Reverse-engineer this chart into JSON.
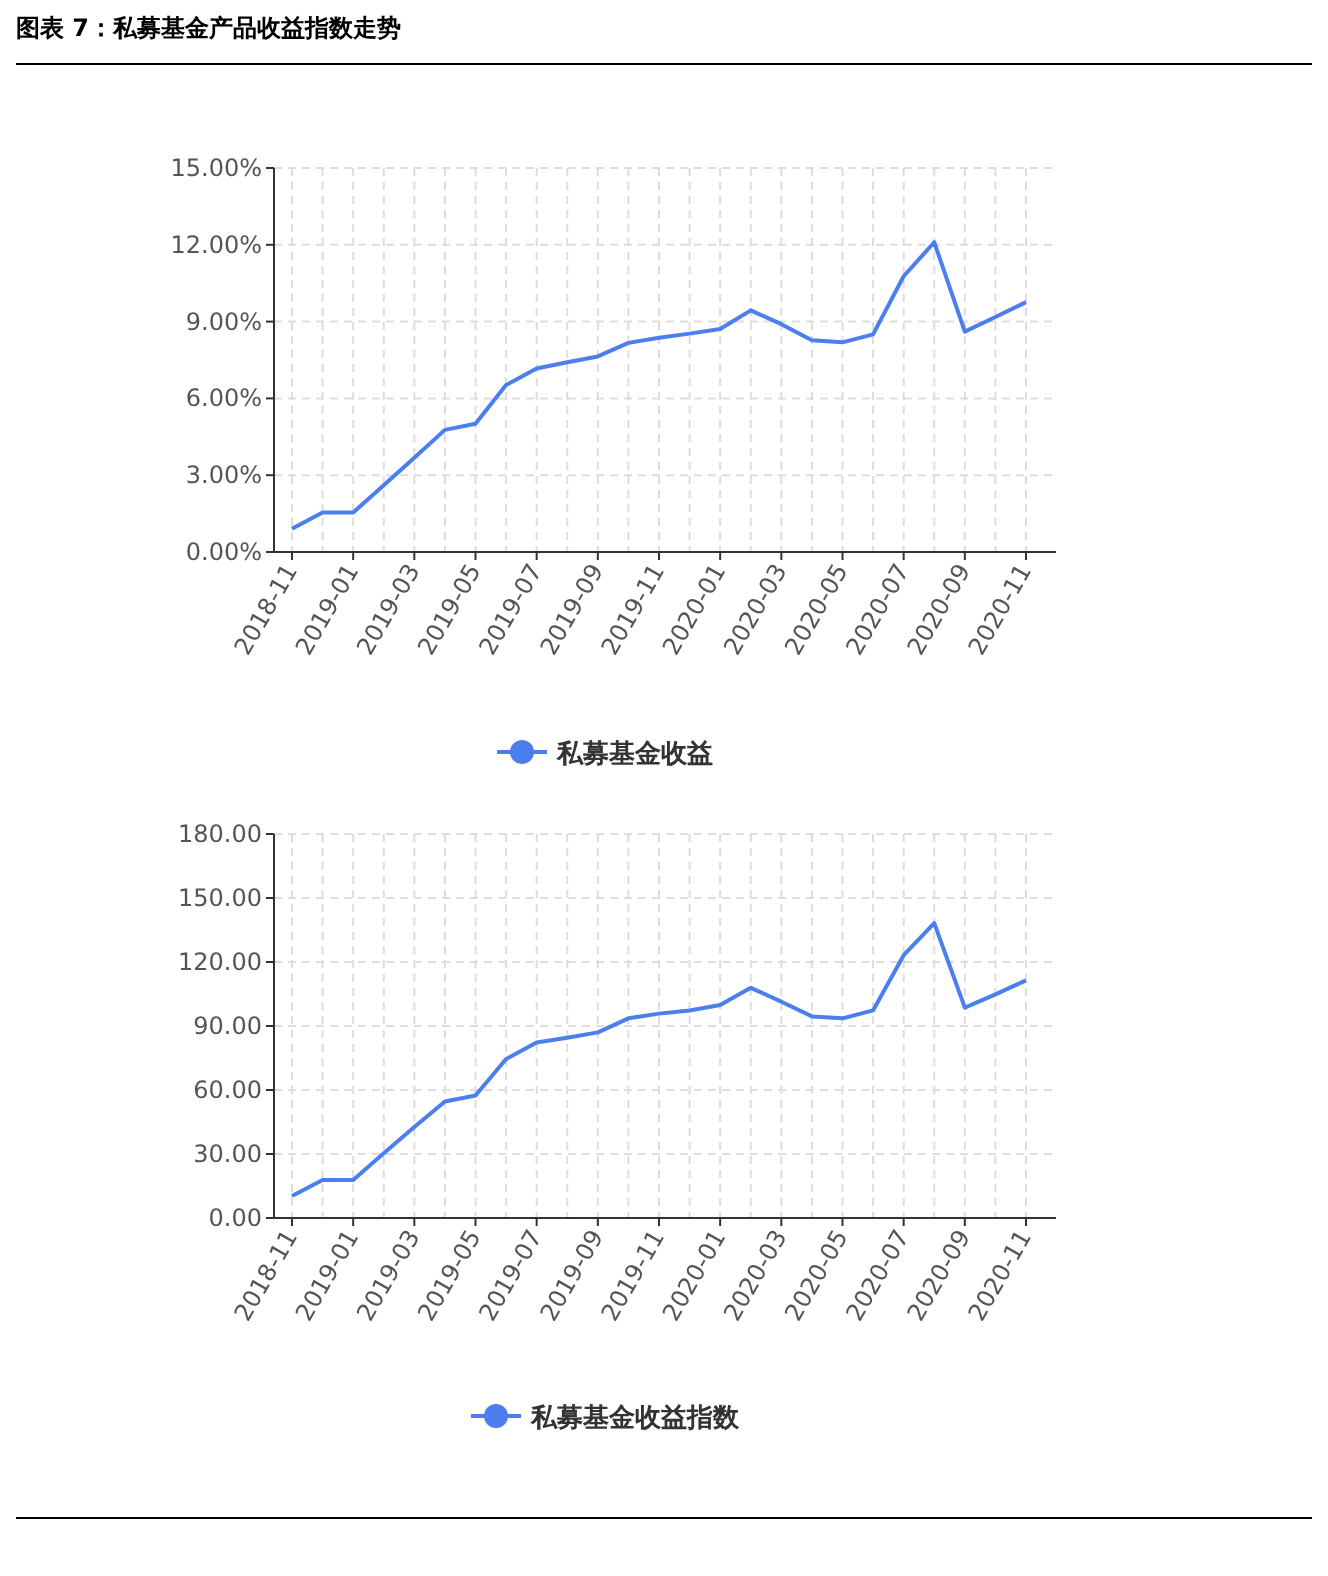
{
  "chart_data": [
    {
      "type": "line",
      "title": "图表 7：私募基金产品收益指数走势",
      "categories": [
        "2018-11",
        null,
        "2019-01",
        null,
        "2019-03",
        null,
        "2019-05",
        null,
        "2019-07",
        null,
        "2019-09",
        null,
        "2019-11",
        null,
        "2020-01",
        null,
        "2020-03",
        null,
        "2020-05",
        null,
        "2020-07",
        null,
        "2020-09",
        null,
        "2020-11"
      ],
      "series": [
        {
          "name": "私募基金收益",
          "color": "#4b7ff0",
          "values": [
            0.91,
            1.54,
            1.54,
            2.61,
            3.68,
            4.77,
            5.01,
            6.52,
            7.17,
            7.41,
            7.64,
            8.17,
            8.37,
            8.53,
            8.71,
            9.44,
            8.9,
            8.27,
            8.19,
            8.5,
            10.77,
            12.1,
            8.61,
            9.18,
            9.76
          ]
        }
      ],
      "ylim": [
        0,
        15
      ],
      "yticks": [
        {
          "value": 0,
          "label": "0.00%"
        },
        {
          "value": 3,
          "label": "3.00%"
        },
        {
          "value": 6,
          "label": "6.00%"
        },
        {
          "value": 9,
          "label": "9.00%"
        },
        {
          "value": 12,
          "label": "12.00%"
        },
        {
          "value": 15,
          "label": "15.00%"
        }
      ],
      "grid": true,
      "legend": "bottom"
    },
    {
      "type": "line",
      "categories": [
        "2018-11",
        null,
        "2019-01",
        null,
        "2019-03",
        null,
        "2019-05",
        null,
        "2019-07",
        null,
        "2019-09",
        null,
        "2019-11",
        null,
        "2020-01",
        null,
        "2020-03",
        null,
        "2020-05",
        null,
        "2020-07",
        null,
        "2020-09",
        null,
        "2020-11"
      ],
      "series": [
        {
          "name": "私募基金收益指数",
          "color": "#4b7ff0",
          "values": [
            10.3,
            17.8,
            17.8,
            30.3,
            42.7,
            54.6,
            57.4,
            74.5,
            82.3,
            84.5,
            87.0,
            93.6,
            95.8,
            97.3,
            99.8,
            107.9,
            101.4,
            94.5,
            93.6,
            97.3,
            123.2,
            138.2,
            98.6,
            104.8,
            111.4
          ]
        }
      ],
      "ylim": [
        0,
        180
      ],
      "yticks": [
        {
          "value": 0,
          "label": "0.00"
        },
        {
          "value": 30,
          "label": "30.00"
        },
        {
          "value": 60,
          "label": "60.00"
        },
        {
          "value": 90,
          "label": "90.00"
        },
        {
          "value": 120,
          "label": "120.00"
        },
        {
          "value": 150,
          "label": "150.00"
        },
        {
          "value": 180,
          "label": "180.00"
        }
      ],
      "grid": true,
      "legend": "bottom"
    }
  ]
}
